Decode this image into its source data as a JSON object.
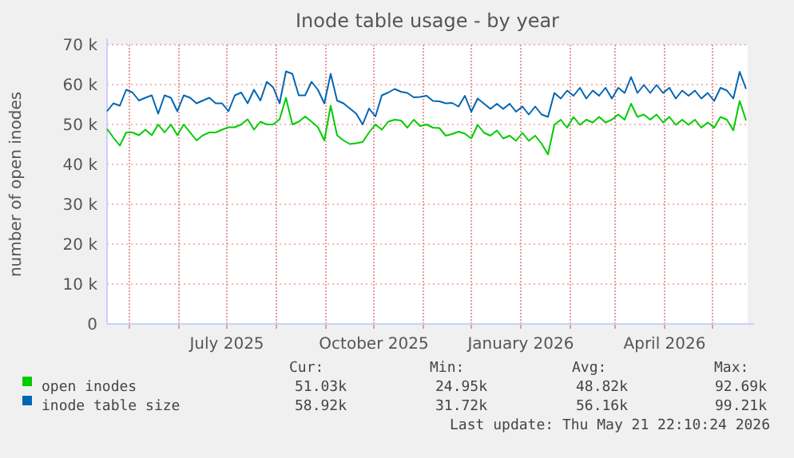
{
  "chart_data": {
    "type": "line",
    "title": "Inode table usage - by year",
    "ylabel": "number of open inodes",
    "x": [
      "2025-04-17",
      "2025-04-21",
      "2025-04-25",
      "2025-04-29",
      "2025-05-03",
      "2025-05-07",
      "2025-05-11",
      "2025-05-15",
      "2025-05-19",
      "2025-05-23",
      "2025-05-27",
      "2025-05-31",
      "2025-06-04",
      "2025-06-08",
      "2025-06-12",
      "2025-06-16",
      "2025-06-20",
      "2025-06-24",
      "2025-06-28",
      "2025-07-02",
      "2025-07-06",
      "2025-07-10",
      "2025-07-14",
      "2025-07-18",
      "2025-07-22",
      "2025-07-26",
      "2025-07-30",
      "2025-08-03",
      "2025-08-07",
      "2025-08-11",
      "2025-08-15",
      "2025-08-19",
      "2025-08-23",
      "2025-08-27",
      "2025-08-31",
      "2025-09-04",
      "2025-09-08",
      "2025-09-12",
      "2025-09-16",
      "2025-09-20",
      "2025-09-24",
      "2025-09-28",
      "2025-10-02",
      "2025-10-06",
      "2025-10-10",
      "2025-10-14",
      "2025-10-18",
      "2025-10-22",
      "2025-10-26",
      "2025-10-30",
      "2025-11-03",
      "2025-11-07",
      "2025-11-11",
      "2025-11-15",
      "2025-11-19",
      "2025-11-23",
      "2025-11-27",
      "2025-12-01",
      "2025-12-05",
      "2025-12-09",
      "2025-12-13",
      "2025-12-17",
      "2025-12-21",
      "2025-12-25",
      "2025-12-29",
      "2026-01-02",
      "2026-01-06",
      "2026-01-10",
      "2026-01-14",
      "2026-01-18",
      "2026-01-22",
      "2026-01-26",
      "2026-01-30",
      "2026-02-03",
      "2026-02-07",
      "2026-02-11",
      "2026-02-15",
      "2026-02-19",
      "2026-02-23",
      "2026-02-27",
      "2026-03-03",
      "2026-03-07",
      "2026-03-11",
      "2026-03-15",
      "2026-03-19",
      "2026-03-23",
      "2026-03-27",
      "2026-03-31",
      "2026-04-04",
      "2026-04-08",
      "2026-04-12",
      "2026-04-16",
      "2026-04-20",
      "2026-04-24",
      "2026-04-28",
      "2026-05-02",
      "2026-05-06",
      "2026-05-10",
      "2026-05-14",
      "2026-05-18",
      "2026-05-22"
    ],
    "series": [
      {
        "name": "open inodes",
        "color": "#00cc00",
        "values": [
          48900,
          46700,
          44700,
          48000,
          48000,
          47300,
          48700,
          47300,
          50000,
          48000,
          50000,
          47300,
          50000,
          48000,
          46000,
          47300,
          48000,
          48000,
          48700,
          49300,
          49300,
          50000,
          51300,
          48700,
          50700,
          50000,
          50000,
          51300,
          56700,
          50000,
          50700,
          52000,
          50700,
          49300,
          46000,
          54700,
          47300,
          46000,
          45100,
          45300,
          45600,
          48000,
          50000,
          48700,
          50700,
          51200,
          51000,
          49200,
          51200,
          49600,
          50000,
          49200,
          49100,
          47200,
          47600,
          48200,
          47700,
          46500,
          49900,
          47900,
          47200,
          48500,
          46500,
          47200,
          45900,
          47900,
          45900,
          47200,
          45200,
          42500,
          49900,
          51200,
          49200,
          51900,
          49900,
          51200,
          50500,
          51900,
          50500,
          51200,
          52500,
          51200,
          55200,
          51900,
          52500,
          51200,
          52500,
          50500,
          51900,
          49900,
          51200,
          49900,
          51200,
          49200,
          50500,
          49200,
          51900,
          51200,
          48500,
          55900,
          51000
        ]
      },
      {
        "name": "inode table size",
        "color": "#0066b3",
        "values": [
          53300,
          55300,
          54700,
          58700,
          58000,
          56000,
          56700,
          57300,
          52700,
          57300,
          56700,
          53300,
          57300,
          56700,
          55300,
          56000,
          56700,
          55300,
          55300,
          53300,
          57300,
          58000,
          55300,
          58700,
          56000,
          60700,
          59300,
          55300,
          63300,
          62700,
          57300,
          57300,
          60700,
          58700,
          55300,
          62700,
          56000,
          55300,
          54000,
          52700,
          50000,
          54000,
          52000,
          57300,
          58000,
          58900,
          58200,
          57900,
          56800,
          56900,
          57200,
          55900,
          55800,
          55300,
          55400,
          54500,
          57200,
          53200,
          56500,
          55200,
          53900,
          55200,
          53900,
          55200,
          53200,
          54500,
          52500,
          54500,
          52500,
          51900,
          57900,
          56500,
          58500,
          57200,
          59200,
          56500,
          58500,
          57200,
          59200,
          56500,
          59200,
          57900,
          61900,
          57900,
          59900,
          57900,
          59900,
          57900,
          59200,
          56500,
          58500,
          57200,
          58500,
          56500,
          57900,
          55900,
          59200,
          58500,
          56500,
          63200,
          58900
        ]
      }
    ],
    "xlim": [
      "2025-04-17",
      "2026-05-23"
    ],
    "xticks": [
      {
        "value": "2025-05-01",
        "label": null
      },
      {
        "value": "2025-06-01",
        "label": null
      },
      {
        "value": "2025-07-01",
        "label": "July 2025"
      },
      {
        "value": "2025-08-01",
        "label": null
      },
      {
        "value": "2025-09-01",
        "label": null
      },
      {
        "value": "2025-10-01",
        "label": "October 2025"
      },
      {
        "value": "2025-11-01",
        "label": null
      },
      {
        "value": "2025-12-01",
        "label": null
      },
      {
        "value": "2026-01-01",
        "label": "January 2026"
      },
      {
        "value": "2026-02-01",
        "label": null
      },
      {
        "value": "2026-03-01",
        "label": null
      },
      {
        "value": "2026-04-01",
        "label": "April 2026"
      },
      {
        "value": "2026-05-01",
        "label": null
      }
    ],
    "ylim": [
      0,
      70000
    ],
    "yticks": [
      0,
      {
        "value": 10000,
        "label": "10 k"
      },
      {
        "value": 20000,
        "label": "20 k"
      },
      {
        "value": 30000,
        "label": "30 k"
      },
      {
        "value": 40000,
        "label": "40 k"
      },
      {
        "value": 50000,
        "label": "50 k"
      },
      {
        "value": 60000,
        "label": "60 k"
      },
      {
        "value": 70000,
        "label": "70 k"
      }
    ],
    "grid": true,
    "legend": "bottom",
    "annotations": [
      "Cur:",
      "Min:",
      "Avg:",
      "Max:",
      "51.03k",
      "24.95k",
      "48.82k",
      "92.69k",
      "58.92k",
      "31.72k",
      "56.16k",
      "99.21k",
      "Last update: Thu May 21 22:10:24 2026"
    ]
  }
}
